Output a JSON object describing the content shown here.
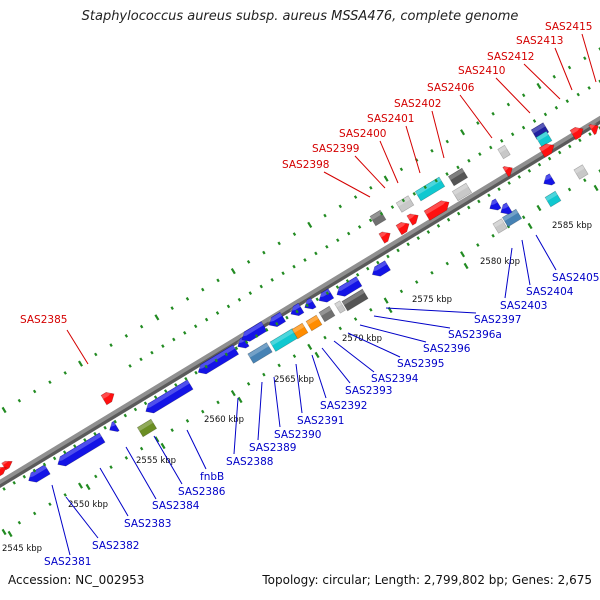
{
  "title": "Staphylococcus aureus subsp. aureus MSSA476, complete genome",
  "footer": {
    "accession": "Accession: NC_002953",
    "summary": "Topology: circular; Length: 2,799,802 bp; Genes: 2,675"
  },
  "colors": {
    "forward_label": "#d40000",
    "reverse_label": "#0000c8",
    "backbone": "#909090",
    "tick": "#228b22"
  },
  "genes": {
    "forward_labels": [
      "SAS2385",
      "SAS2398",
      "SAS2399",
      "SAS2400",
      "SAS2401",
      "SAS2402",
      "SAS2406",
      "SAS2410",
      "SAS2412",
      "SAS2413",
      "SAS2415"
    ],
    "reverse_labels": [
      "SAS2381",
      "SAS2382",
      "SAS2383",
      "SAS2384",
      "SAS2386",
      "fnbB",
      "SAS2388",
      "SAS2389",
      "SAS2390",
      "SAS2391",
      "SAS2392",
      "SAS2393",
      "SAS2394",
      "SAS2395",
      "SAS2396",
      "SAS2396a",
      "SAS2397",
      "SAS2403",
      "SAS2404",
      "SAS2405"
    ]
  },
  "scale": {
    "labels": [
      "2545 kbp",
      "2550 kbp",
      "2555 kbp",
      "2560 kbp",
      "2565 kbp",
      "2570 kbp",
      "2575 kbp",
      "2580 kbp",
      "2585 kbp"
    ]
  }
}
